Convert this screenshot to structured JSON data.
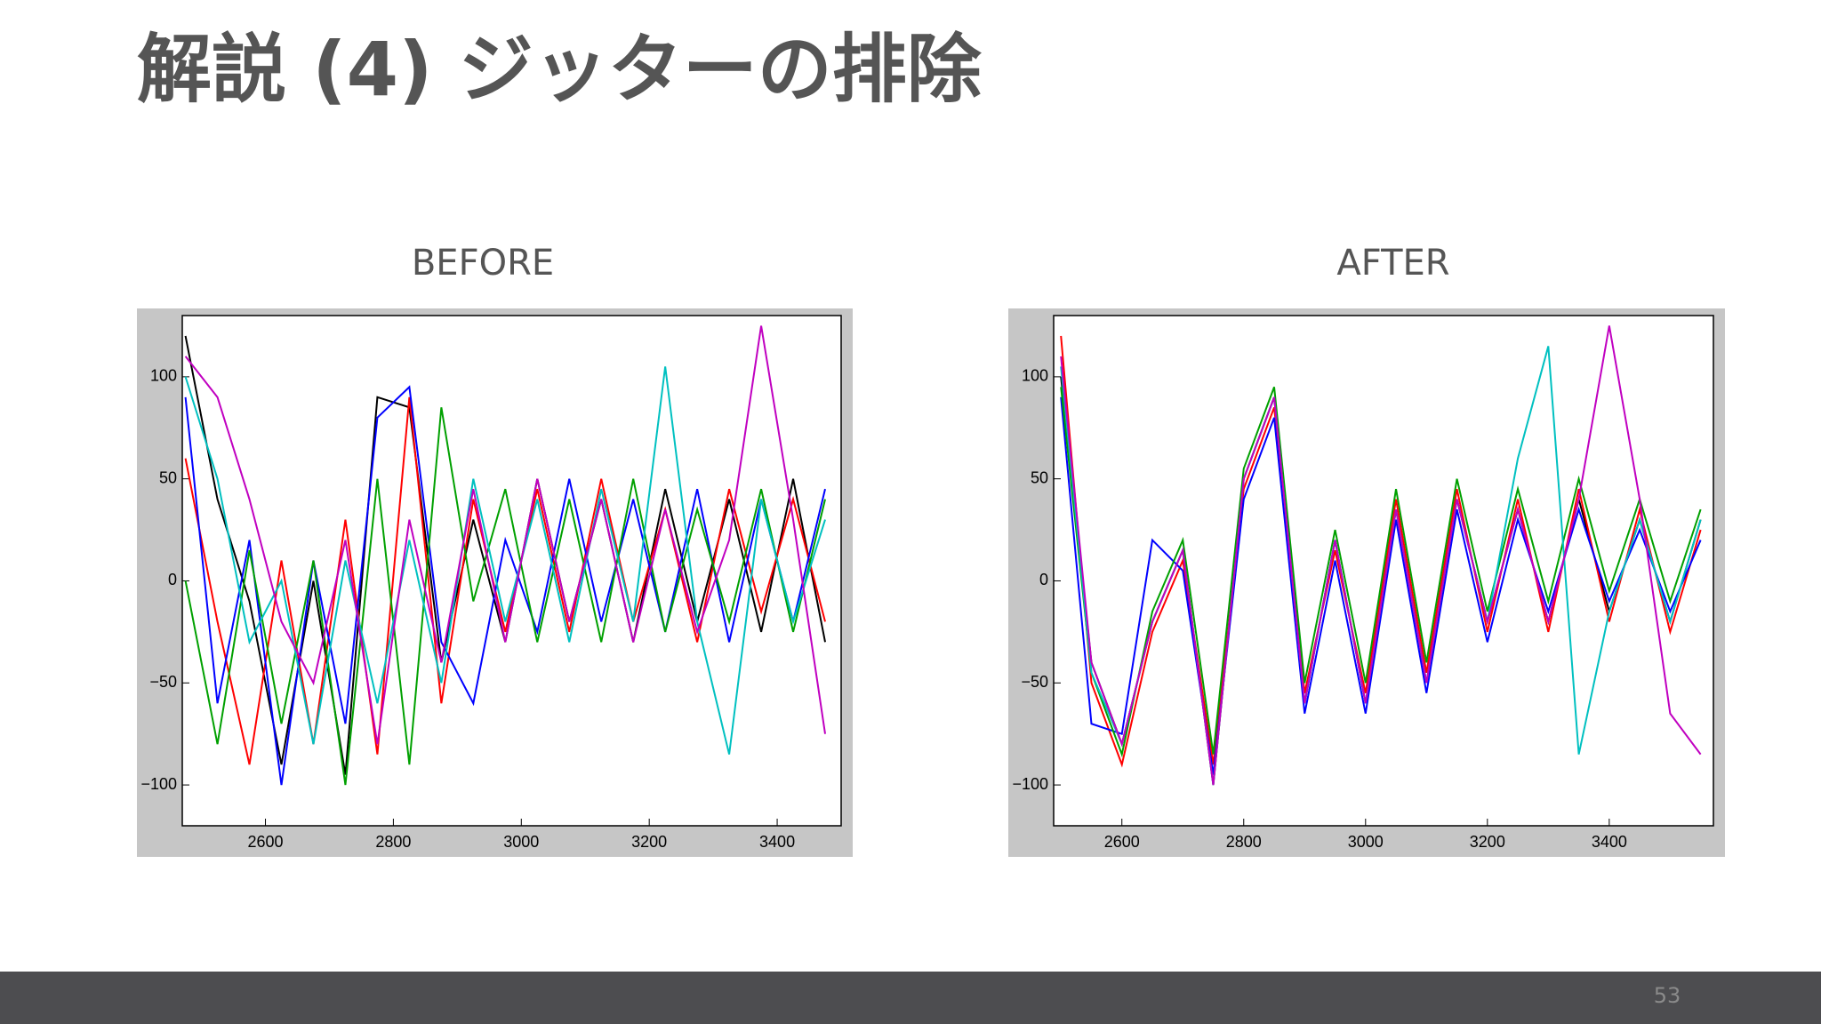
{
  "title": "解説 (4) ジッターの排除",
  "page_number": "53",
  "chart_data": [
    {
      "type": "line",
      "title": "BEFORE",
      "x": [
        2475,
        2525,
        2575,
        2625,
        2675,
        2725,
        2775,
        2825,
        2875,
        2925,
        2975,
        3025,
        3075,
        3125,
        3175,
        3225,
        3275,
        3325,
        3375,
        3425,
        3475
      ],
      "series": [
        {
          "color": "#000000",
          "values": [
            120,
            40,
            -10,
            -90,
            0,
            -95,
            90,
            85,
            -40,
            30,
            -30,
            50,
            -20,
            40,
            -30,
            45,
            -20,
            40,
            -25,
            50,
            -30
          ]
        },
        {
          "color": "#ff0000",
          "values": [
            60,
            -20,
            -90,
            10,
            -80,
            30,
            -85,
            90,
            -60,
            40,
            -25,
            45,
            -25,
            50,
            -20,
            35,
            -30,
            45,
            -15,
            40,
            -20
          ]
        },
        {
          "color": "#0000ff",
          "values": [
            90,
            -60,
            20,
            -100,
            10,
            -70,
            80,
            95,
            -30,
            -60,
            20,
            -25,
            50,
            -20,
            40,
            -25,
            45,
            -30,
            40,
            -20,
            45
          ]
        },
        {
          "color": "#00a000",
          "values": [
            0,
            -80,
            15,
            -70,
            10,
            -100,
            50,
            -90,
            85,
            -10,
            45,
            -30,
            40,
            -30,
            50,
            -25,
            35,
            -20,
            45,
            -25,
            40
          ]
        },
        {
          "color": "#00c0c0",
          "values": [
            100,
            50,
            -30,
            0,
            -80,
            10,
            -60,
            20,
            -50,
            50,
            -20,
            40,
            -30,
            45,
            -20,
            105,
            -20,
            -85,
            40,
            -20,
            30
          ]
        },
        {
          "color": "#c000c0",
          "values": [
            110,
            90,
            40,
            -20,
            -50,
            20,
            -80,
            30,
            -40,
            45,
            -30,
            50,
            -20,
            40,
            -30,
            35,
            -25,
            20,
            125,
            30,
            -75
          ]
        }
      ],
      "xlim": [
        2470,
        3500
      ],
      "ylim": [
        -120,
        130
      ],
      "xticks": [
        2600,
        2800,
        3000,
        3200,
        3400
      ],
      "yticks": [
        {
          "value": -100,
          "label": "−100"
        },
        {
          "value": -50,
          "label": "−50"
        },
        0,
        50,
        100
      ]
    },
    {
      "type": "line",
      "title": "AFTER",
      "x": [
        2500,
        2550,
        2600,
        2650,
        2700,
        2750,
        2800,
        2850,
        2900,
        2950,
        3000,
        3050,
        3100,
        3150,
        3200,
        3250,
        3300,
        3350,
        3400,
        3450,
        3500,
        3550
      ],
      "series": [
        {
          "color": "#000000",
          "values": [
            100,
            -40,
            -80,
            -20,
            15,
            -100,
            50,
            90,
            -60,
            20,
            -60,
            35,
            -50,
            40,
            -20,
            35,
            -20,
            40,
            -15,
            30,
            -20,
            30
          ]
        },
        {
          "color": "#ff0000",
          "values": [
            120,
            -50,
            -90,
            -25,
            10,
            -90,
            45,
            85,
            -55,
            15,
            -55,
            40,
            -45,
            45,
            -25,
            40,
            -25,
            45,
            -20,
            35,
            -25,
            25
          ]
        },
        {
          "color": "#0000ff",
          "values": [
            90,
            -70,
            -75,
            20,
            5,
            -95,
            40,
            80,
            -65,
            10,
            -65,
            30,
            -55,
            35,
            -30,
            30,
            -15,
            35,
            -10,
            25,
            -15,
            20
          ]
        },
        {
          "color": "#00a000",
          "values": [
            95,
            -45,
            -85,
            -15,
            20,
            -85,
            55,
            95,
            -50,
            25,
            -50,
            45,
            -40,
            50,
            -15,
            45,
            -10,
            50,
            -5,
            40,
            -10,
            35
          ]
        },
        {
          "color": "#00c0c0",
          "values": [
            105,
            -45,
            -80,
            -20,
            15,
            -100,
            50,
            90,
            -60,
            20,
            -60,
            35,
            -50,
            40,
            -20,
            60,
            115,
            -85,
            -15,
            30,
            -20,
            30
          ]
        },
        {
          "color": "#c000c0",
          "values": [
            110,
            -40,
            -80,
            -20,
            15,
            -100,
            50,
            90,
            -60,
            20,
            -60,
            35,
            -50,
            40,
            -20,
            35,
            -20,
            40,
            125,
            40,
            -65,
            -85
          ]
        }
      ],
      "xlim": [
        2488,
        3571
      ],
      "ylim": [
        -120,
        130
      ],
      "xticks": [
        2600,
        2800,
        3000,
        3200,
        3400
      ],
      "yticks": [
        {
          "value": -100,
          "label": "−100"
        },
        {
          "value": -50,
          "label": "−50"
        },
        0,
        50,
        100
      ]
    }
  ]
}
